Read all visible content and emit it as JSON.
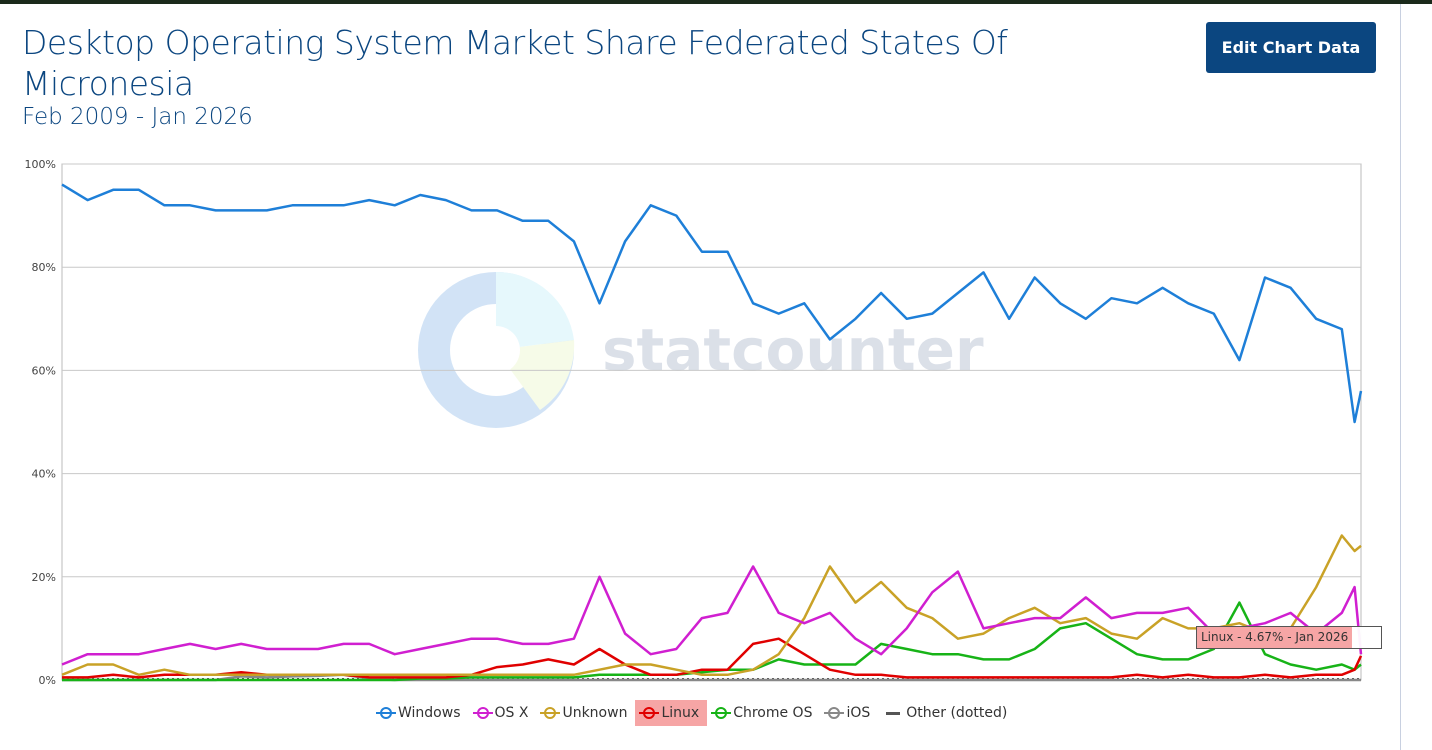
{
  "header": {
    "title": "Desktop Operating System Market Share Federated States Of Micronesia",
    "subtitle": "Feb 2009 - Jan 2026",
    "edit_button": "Edit Chart Data"
  },
  "watermark": "statcounter",
  "tooltip": {
    "text": "Linux - 4.67% - Jan 2026"
  },
  "chart_data": {
    "type": "line",
    "title": "Desktop Operating System Market Share Federated States Of Micronesia",
    "subtitle": "Feb 2009 - Jan 2026",
    "x_start": "Feb 2009",
    "x_end": "Jan 2026",
    "x_month_index": [
      0,
      4,
      8,
      12,
      16,
      20,
      24,
      28,
      32,
      36,
      40,
      44,
      48,
      52,
      56,
      60,
      64,
      68,
      72,
      76,
      80,
      84,
      88,
      92,
      96,
      100,
      104,
      108,
      112,
      116,
      120,
      124,
      128,
      132,
      136,
      140,
      144,
      148,
      152,
      156,
      160,
      164,
      168,
      172,
      176,
      180,
      184,
      188,
      192,
      196,
      200,
      202,
      203
    ],
    "total_months": 204,
    "ylim": [
      0,
      100
    ],
    "yticks": [
      "0%",
      "20%",
      "40%",
      "60%",
      "80%",
      "100%"
    ],
    "ytick_values": [
      0,
      20,
      40,
      60,
      80,
      100
    ],
    "grid": true,
    "legend_position": "bottom",
    "series": [
      {
        "name": "Windows",
        "color": "#1e7fd8",
        "values": [
          96,
          93,
          95,
          95,
          92,
          92,
          91,
          91,
          91,
          92,
          92,
          92,
          93,
          92,
          94,
          93,
          91,
          91,
          89,
          89,
          85,
          73,
          85,
          92,
          90,
          83,
          83,
          73,
          71,
          73,
          66,
          70,
          75,
          70,
          71,
          75,
          79,
          70,
          78,
          73,
          70,
          74,
          73,
          76,
          73,
          71,
          62,
          78,
          76,
          70,
          68,
          50,
          56
        ]
      },
      {
        "name": "OS X",
        "color": "#d01fd0",
        "values": [
          3,
          5,
          5,
          5,
          6,
          7,
          6,
          7,
          6,
          6,
          6,
          7,
          7,
          5,
          6,
          7,
          8,
          8,
          7,
          7,
          8,
          20,
          9,
          5,
          6,
          12,
          13,
          22,
          13,
          11,
          13,
          8,
          5,
          10,
          17,
          21,
          10,
          11,
          12,
          12,
          16,
          12,
          13,
          13,
          14,
          9,
          10,
          11,
          13,
          9,
          13,
          18,
          5
        ]
      },
      {
        "name": "Unknown",
        "color": "#c9a227",
        "values": [
          1,
          3,
          3,
          1,
          2,
          1,
          1,
          1,
          1,
          1,
          1,
          1,
          1,
          1,
          1,
          1,
          1,
          1,
          1,
          1,
          1,
          2,
          3,
          3,
          2,
          1,
          1,
          2,
          5,
          12,
          22,
          15,
          19,
          14,
          12,
          8,
          9,
          12,
          14,
          11,
          12,
          9,
          8,
          12,
          10,
          10,
          11,
          9,
          10,
          18,
          28,
          25,
          26
        ]
      },
      {
        "name": "Linux",
        "color": "#e00000",
        "values": [
          0.5,
          0.5,
          1,
          0.5,
          1,
          1,
          1,
          1.5,
          1,
          1,
          1,
          1,
          0.5,
          0.5,
          0.5,
          0.5,
          1,
          2.5,
          3,
          4,
          3,
          6,
          3,
          1,
          1,
          2,
          2,
          7,
          8,
          5,
          2,
          1,
          1,
          0.5,
          0.5,
          0.5,
          0.5,
          0.5,
          0.5,
          0.5,
          0.5,
          0.5,
          1,
          0.5,
          1,
          0.5,
          0.5,
          1,
          0.5,
          1,
          1,
          2,
          4.67
        ]
      },
      {
        "name": "Chrome OS",
        "color": "#17b317",
        "values": [
          0,
          0,
          0,
          0,
          0,
          0,
          0,
          0,
          0,
          0,
          0,
          0,
          0,
          0,
          0.3,
          0.3,
          0.5,
          0.5,
          0.5,
          0.5,
          0.5,
          1,
          1,
          1,
          1,
          1.5,
          2,
          2,
          4,
          3,
          3,
          3,
          7,
          6,
          5,
          5,
          4,
          4,
          6,
          10,
          11,
          8,
          5,
          4,
          4,
          6,
          15,
          5,
          3,
          2,
          3,
          2,
          3
        ]
      },
      {
        "name": "iOS",
        "color": "#888888",
        "values": [
          0,
          0,
          0,
          0,
          0,
          0,
          0,
          0.7,
          0.5,
          0.7,
          0.8,
          1,
          0.3,
          0,
          0,
          0,
          0,
          0,
          0,
          0,
          0,
          0,
          0,
          0,
          0,
          0,
          0,
          0,
          0,
          0,
          0,
          0,
          0,
          0,
          0,
          0,
          0,
          0,
          0,
          0,
          0,
          0,
          0,
          0,
          0,
          0,
          0,
          0,
          0,
          0,
          0,
          0,
          0
        ]
      },
      {
        "name": "Other (dotted)",
        "color": "#555555",
        "dotted": true,
        "values": [
          0.2,
          0.2,
          0.2,
          0.2,
          0.2,
          0.2,
          0.2,
          0.2,
          0.2,
          0.2,
          0.2,
          0.2,
          0.2,
          0.2,
          0.2,
          0.2,
          0.2,
          0.2,
          0.2,
          0.2,
          0.2,
          0.2,
          0.2,
          0.2,
          0.2,
          0.2,
          0.2,
          0.2,
          0.2,
          0.2,
          0.2,
          0.2,
          0.2,
          0.2,
          0.2,
          0.2,
          0.2,
          0.2,
          0.2,
          0.2,
          0.2,
          0.2,
          0.2,
          0.2,
          0.2,
          0.2,
          0.2,
          0.2,
          0.2,
          0.2,
          0.2,
          0.2,
          0.2
        ]
      }
    ],
    "highlighted_series": "Linux"
  }
}
